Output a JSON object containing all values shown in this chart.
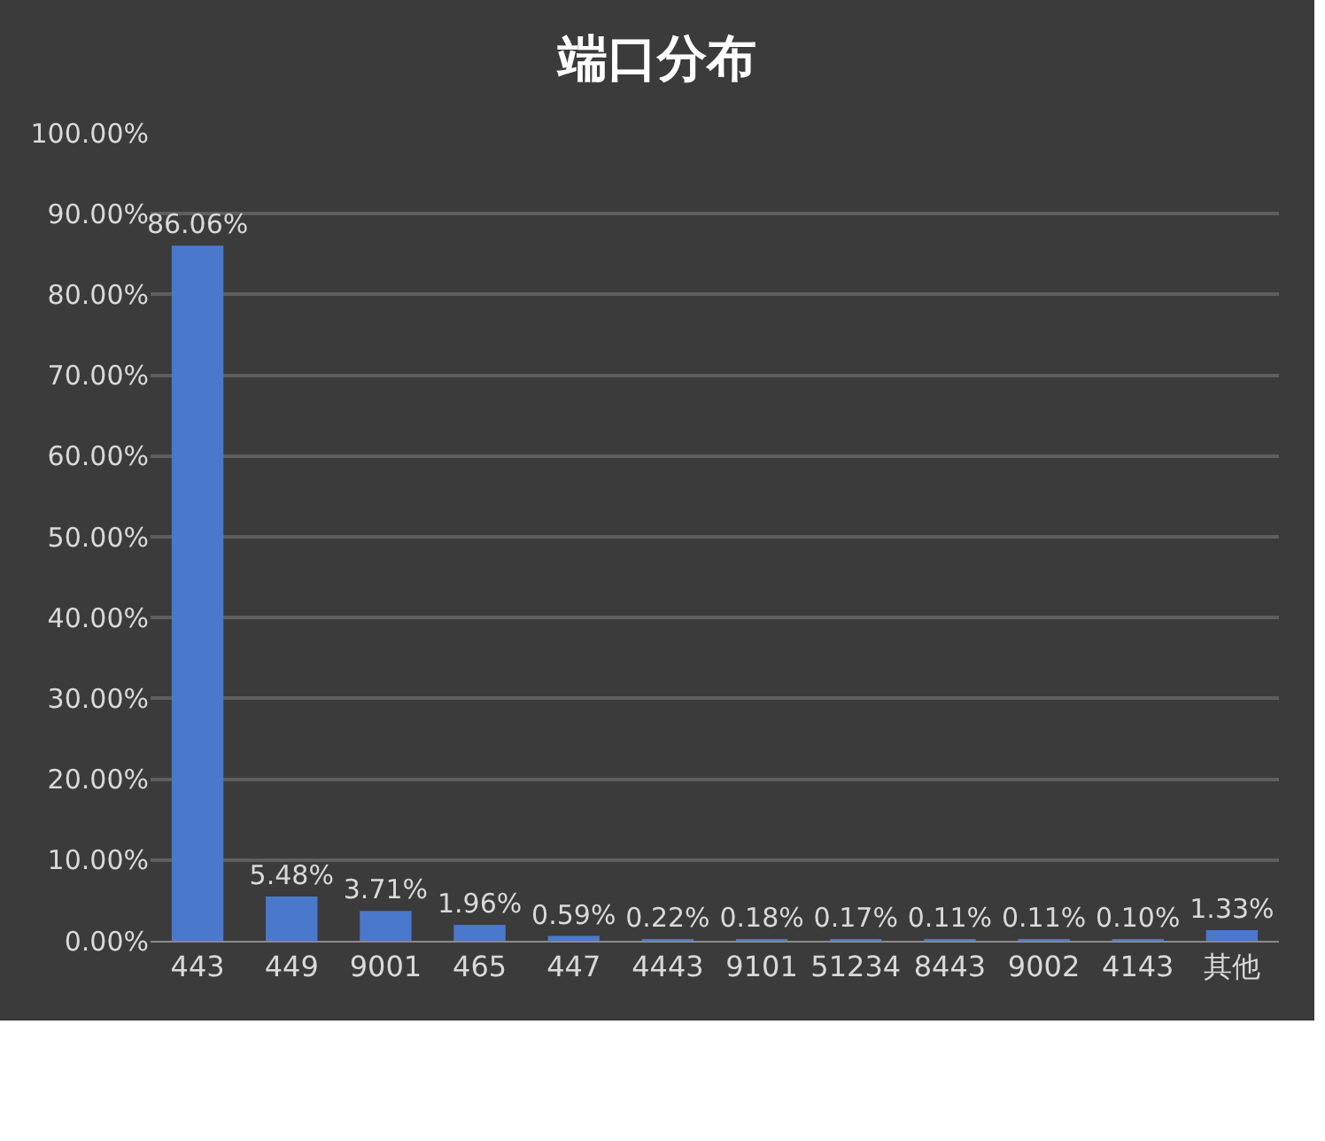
{
  "chart_data": {
    "type": "bar",
    "title": "端口分布",
    "categories": [
      "443",
      "449",
      "9001",
      "465",
      "447",
      "4443",
      "9101",
      "51234",
      "8443",
      "9002",
      "4143",
      "其他"
    ],
    "values": [
      86.06,
      5.48,
      3.71,
      1.96,
      0.59,
      0.22,
      0.18,
      0.17,
      0.11,
      0.11,
      0.1,
      1.33
    ],
    "value_labels": [
      "86.06%",
      "5.48%",
      "3.71%",
      "1.96%",
      "0.59%",
      "0.22%",
      "0.18%",
      "0.17%",
      "0.11%",
      "0.11%",
      "0.10%",
      "1.33%"
    ],
    "color": "#4a78cc",
    "ylim": [
      0,
      100
    ],
    "yticks": [
      {
        "value": 0,
        "label": "0.00%"
      },
      {
        "value": 10,
        "label": "10.00%"
      },
      {
        "value": 20,
        "label": "20.00%"
      },
      {
        "value": 30,
        "label": "30.00%"
      },
      {
        "value": 40,
        "label": "40.00%"
      },
      {
        "value": 50,
        "label": "50.00%"
      },
      {
        "value": 60,
        "label": "60.00%"
      },
      {
        "value": 70,
        "label": "70.00%"
      },
      {
        "value": 80,
        "label": "80.00%"
      },
      {
        "value": 90,
        "label": "90.00%"
      },
      {
        "value": 100,
        "label": "100.00%"
      }
    ],
    "grid": "y"
  }
}
